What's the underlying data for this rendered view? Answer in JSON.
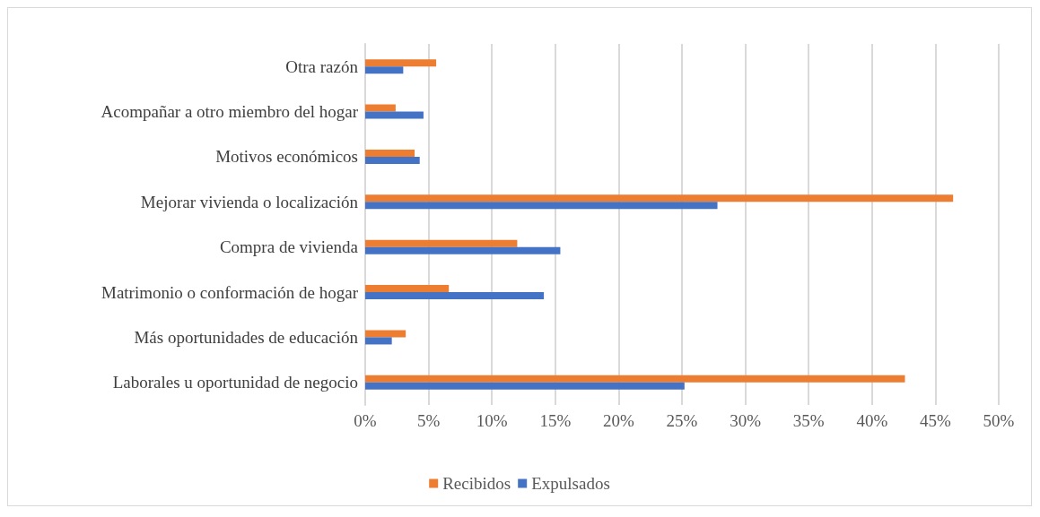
{
  "chart_data": {
    "type": "bar",
    "orientation": "horizontal",
    "categories": [
      "Otra razón",
      "Acompañar a otro miembro del hogar",
      "Motivos económicos",
      "Mejorar vivienda o localización",
      "Compra de vivienda",
      "Matrimonio o conformación de hogar",
      "Más oportunidades de educación",
      "Laborales u oportunidad de negocio"
    ],
    "series": [
      {
        "name": "Recibidos",
        "color": "#ed7d31",
        "values": [
          5.6,
          2.4,
          3.9,
          46.4,
          12.0,
          6.6,
          3.2,
          42.6
        ]
      },
      {
        "name": "Expulsados",
        "color": "#4472c4",
        "values": [
          3.0,
          4.6,
          4.3,
          27.8,
          15.4,
          14.1,
          2.1,
          25.2
        ]
      }
    ],
    "xlim": [
      0,
      50
    ],
    "xticks": [
      {
        "value": 0,
        "label": "0%"
      },
      {
        "value": 5,
        "label": "5%"
      },
      {
        "value": 10,
        "label": "10%"
      },
      {
        "value": 15,
        "label": "15%"
      },
      {
        "value": 20,
        "label": "20%"
      },
      {
        "value": 25,
        "label": "25%"
      },
      {
        "value": 30,
        "label": "30%"
      },
      {
        "value": 35,
        "label": "35%"
      },
      {
        "value": 40,
        "label": "40%"
      },
      {
        "value": 45,
        "label": "45%"
      },
      {
        "value": 50,
        "label": "50%"
      }
    ],
    "grid": "x",
    "legend": "bottom"
  }
}
